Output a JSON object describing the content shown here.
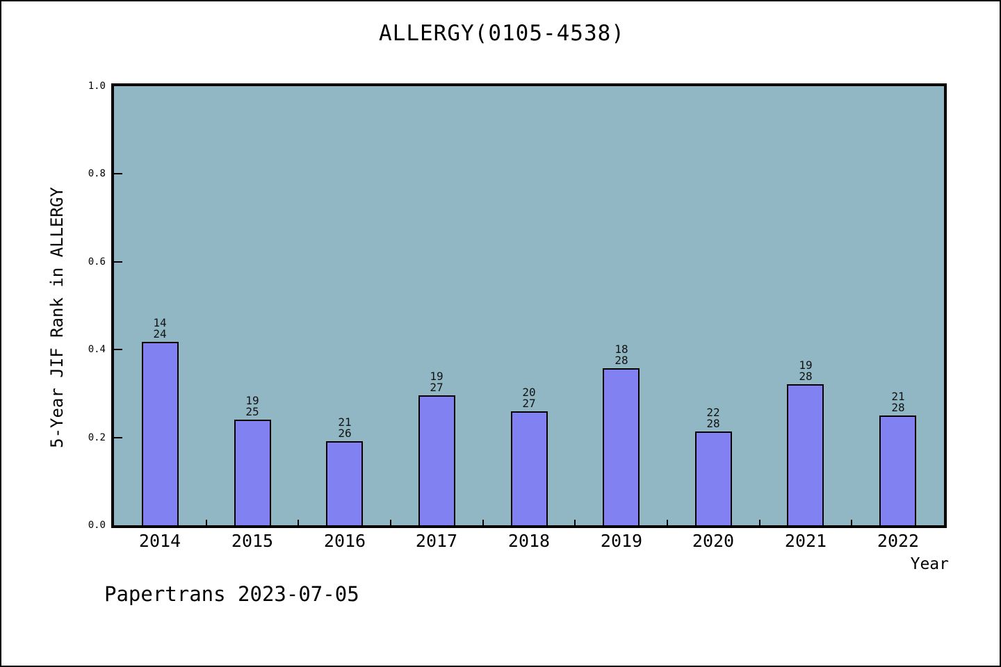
{
  "header": {
    "title": "ALLERGY(0105-4538)"
  },
  "footer": {
    "text": "Papertrans 2023-07-05"
  },
  "chart_data": {
    "type": "bar",
    "title": "ALLERGY(0105-4538)",
    "xlabel": "Year",
    "ylabel": "5-Year JIF Rank in ALLERGY",
    "categories": [
      "2014",
      "2015",
      "2016",
      "2017",
      "2018",
      "2019",
      "2020",
      "2021",
      "2022"
    ],
    "values": [
      0.417,
      0.24,
      0.192,
      0.296,
      0.259,
      0.357,
      0.214,
      0.321,
      0.25
    ],
    "bar_labels": [
      {
        "rank": "14",
        "total": "24"
      },
      {
        "rank": "19",
        "total": "25"
      },
      {
        "rank": "21",
        "total": "26"
      },
      {
        "rank": "19",
        "total": "27"
      },
      {
        "rank": "20",
        "total": "27"
      },
      {
        "rank": "18",
        "total": "28"
      },
      {
        "rank": "22",
        "total": "28"
      },
      {
        "rank": "19",
        "total": "28"
      },
      {
        "rank": "21",
        "total": "28"
      }
    ],
    "ylim": [
      0.0,
      1.0
    ],
    "yticks": [
      0.0,
      0.2,
      0.4,
      0.6,
      0.8,
      1.0
    ],
    "grid": false,
    "legend_position": "none",
    "colors": {
      "plot_background": "#91b7c4",
      "bar_fill": "#8181f2",
      "bar_edge": "#000000",
      "axis": "#000000",
      "outer_background": "#ffffff",
      "text": "#000000"
    }
  }
}
